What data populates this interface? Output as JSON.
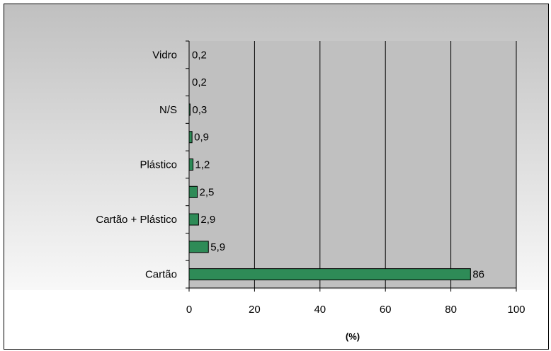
{
  "chart_data": {
    "type": "bar",
    "orientation": "horizontal",
    "categories": [
      "Vidro",
      "",
      "N/S",
      "",
      "Plástico",
      "",
      "Cartão + Plástico",
      "",
      "Cartão"
    ],
    "values": [
      0.2,
      0.2,
      0.3,
      0.9,
      1.2,
      2.5,
      2.9,
      5.9,
      86
    ],
    "data_labels": [
      "0,2",
      "0,2",
      "0,3",
      "0,9",
      "1,2",
      "2,5",
      "2,9",
      "5,9",
      "86"
    ],
    "title": "",
    "xlabel": "(%)",
    "ylabel": "",
    "xlim": [
      0,
      100
    ],
    "x_ticks": [
      "0",
      "20",
      "40",
      "60",
      "80",
      "100"
    ],
    "grid": "vertical major gridlines",
    "legend": "none",
    "colors": {
      "bar": "#2e8b57",
      "bar_border": "#000000",
      "plot_area": "#c0c0c0",
      "gridline": "#000000",
      "background_band_top": "#c0c0c0",
      "background_band_bottom": "#f8f8f8"
    }
  }
}
